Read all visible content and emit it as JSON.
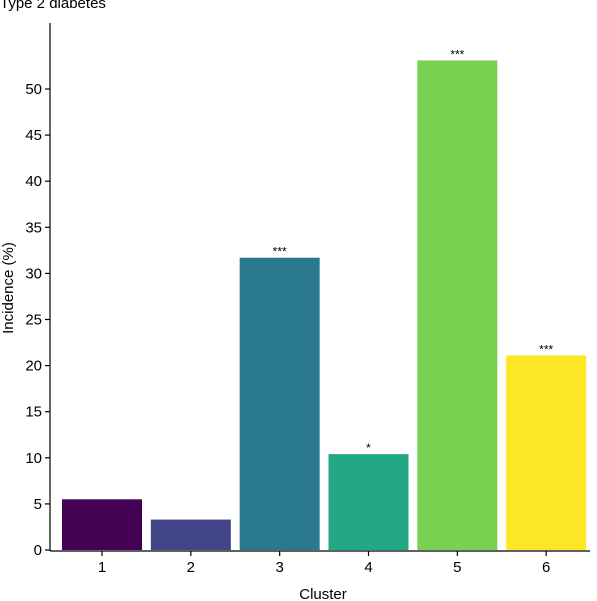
{
  "chart_data": {
    "type": "bar",
    "title": "Type 2 diabetes",
    "xlabel": "Cluster",
    "ylabel": "Incidence (%)",
    "categories": [
      "1",
      "2",
      "3",
      "4",
      "5",
      "6"
    ],
    "values": [
      5.5,
      3.3,
      31.7,
      10.4,
      53.1,
      21.1
    ],
    "significance": [
      "",
      "",
      "***",
      "*",
      "***",
      "***"
    ],
    "colors": [
      "#440154",
      "#414487",
      "#2a788e",
      "#22a884",
      "#7ad151",
      "#fde725"
    ],
    "yticks": [
      0,
      5,
      10,
      15,
      20,
      25,
      30,
      35,
      40,
      45,
      50
    ],
    "ylim": [
      0,
      57
    ],
    "grid": false,
    "legend": "none"
  }
}
